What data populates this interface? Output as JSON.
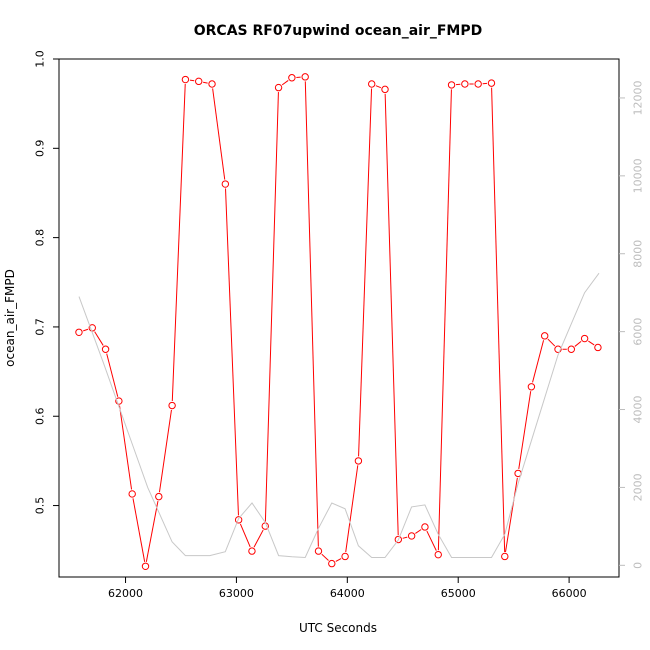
{
  "chart_data": {
    "type": "line",
    "title": "ORCAS RF07upwind ocean_air_FMPD",
    "xlabel": "UTC Seconds",
    "ylabel": "ocean_air_FMPD",
    "xlim": [
      61400,
      66450
    ],
    "ylim": [
      0.42,
      1.0
    ],
    "y2lim": [
      -300,
      13000
    ],
    "x_ticks": [
      62000,
      63000,
      64000,
      65000,
      66000
    ],
    "y_ticks": [
      0.5,
      0.6,
      0.7,
      0.8,
      0.9,
      1.0
    ],
    "y2_ticks": [
      0,
      2000,
      4000,
      6000,
      8000,
      10000,
      12000
    ],
    "grid": false,
    "colors": {
      "primary": "#ff0000",
      "secondary": "#c8c8c8",
      "right_axis": "#bdbdbd"
    },
    "series": [
      {
        "type": "line+points",
        "axis": "left",
        "color": "#ff0000",
        "x": [
          61580,
          61700,
          61820,
          61940,
          62060,
          62180,
          62300,
          62420,
          62540,
          62660,
          62780,
          62900,
          63020,
          63140,
          63260,
          63380,
          63500,
          63620,
          63740,
          63860,
          63980,
          64100,
          64220,
          64340,
          64460,
          64580,
          64700,
          64820,
          64940,
          65060,
          65180,
          65300,
          65420,
          65540,
          65660,
          65780,
          65900,
          66020,
          66140,
          66260
        ],
        "y": [
          0.694,
          0.699,
          0.675,
          0.617,
          0.513,
          0.432,
          0.51,
          0.612,
          0.977,
          0.975,
          0.972,
          0.86,
          0.484,
          0.449,
          0.477,
          0.968,
          0.979,
          0.98,
          0.449,
          0.435,
          0.443,
          0.55,
          0.972,
          0.966,
          0.462,
          0.466,
          0.476,
          0.445,
          0.971,
          0.972,
          0.972,
          0.973,
          0.443,
          0.536,
          0.633,
          0.69,
          0.675,
          0.675,
          0.687,
          0.677
        ]
      },
      {
        "type": "line",
        "axis": "right",
        "color": "#c8c8c8",
        "x": [
          61580,
          61800,
          62000,
          62200,
          62420,
          62540,
          62760,
          62900,
          63020,
          63140,
          63260,
          63380,
          63500,
          63620,
          63740,
          63860,
          63980,
          64100,
          64220,
          64340,
          64460,
          64580,
          64700,
          64820,
          64940,
          65060,
          65180,
          65300,
          65420,
          65540,
          65660,
          65780,
          65900,
          66020,
          66140,
          66270
        ],
        "y": [
          6900,
          5200,
          3600,
          2000,
          600,
          250,
          250,
          350,
          1200,
          1600,
          1100,
          250,
          220,
          200,
          950,
          1600,
          1450,
          500,
          200,
          200,
          650,
          1500,
          1550,
          800,
          200,
          200,
          200,
          200,
          800,
          2100,
          3200,
          4300,
          5400,
          6200,
          7000,
          7500
        ]
      }
    ]
  }
}
